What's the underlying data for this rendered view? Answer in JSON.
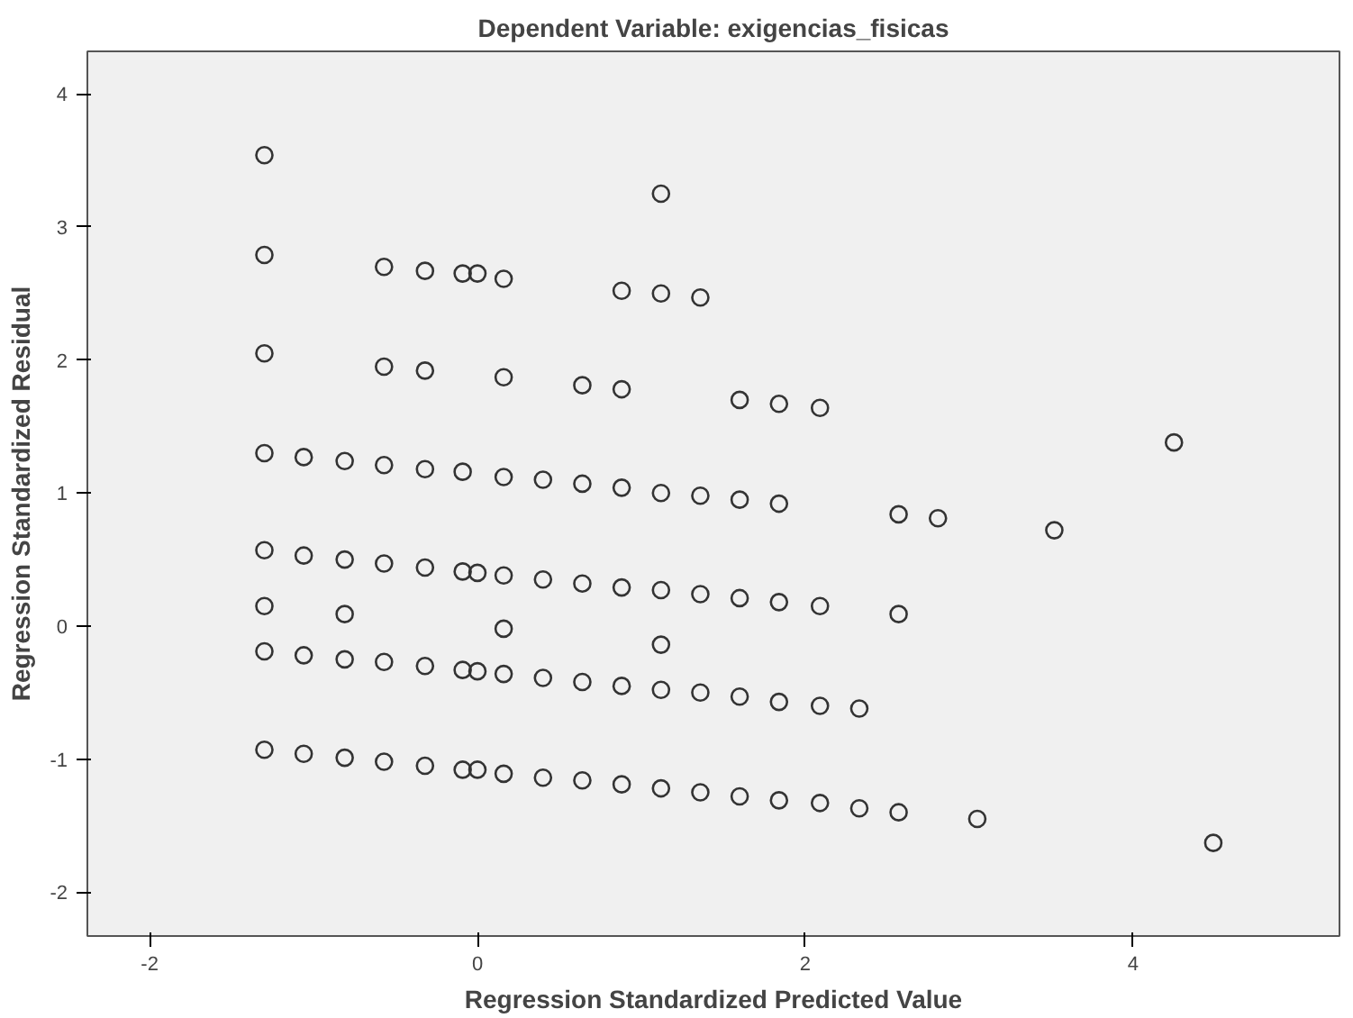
{
  "chart_data": {
    "type": "scatter",
    "title": "Dependent Variable: exigencias_fisicas",
    "xlabel": "Regression Standardized Predicted Value",
    "ylabel": "Regression Standardized Residual",
    "xlim": [
      -2.38,
      5.26
    ],
    "ylim": [
      -2.33,
      4.32
    ],
    "xticks": [
      -2,
      0,
      2,
      4
    ],
    "yticks": [
      -2,
      -1,
      0,
      1,
      2,
      3,
      4
    ],
    "grid": false,
    "marker": "circle",
    "series": [
      {
        "color": "#333333",
        "x": [
          -1.3,
          -1.06,
          -0.81,
          -0.57,
          -0.32,
          -0.09,
          0.16,
          0.4,
          0.64,
          0.88,
          1.12,
          1.36,
          1.6,
          1.84,
          2.57,
          2.81,
          3.52,
          4.25,
          -1.3,
          -1.06,
          -0.81,
          -0.57,
          -0.32,
          -0.09,
          0.0,
          0.16,
          0.4,
          0.64,
          0.88,
          1.12,
          1.36,
          1.6,
          1.84,
          2.09,
          2.57,
          -1.3,
          -0.81,
          0.16,
          1.12,
          -1.3,
          -1.06,
          -0.81,
          -0.57,
          -0.32,
          -0.09,
          0.0,
          0.16,
          0.4,
          0.64,
          0.88,
          1.12,
          1.36,
          1.6,
          1.84,
          2.09,
          2.33,
          -1.3,
          -1.06,
          -0.81,
          -0.57,
          -0.32,
          -0.09,
          0.0,
          0.16,
          0.4,
          0.64,
          0.88,
          1.12,
          1.36,
          1.6,
          1.84,
          2.09,
          2.33,
          2.57,
          3.05,
          4.49,
          -1.3,
          -1.3,
          -1.3,
          -0.57,
          -0.57,
          -0.32,
          -0.32,
          -0.09,
          0.0,
          0.16,
          0.16,
          0.64,
          0.88,
          0.88,
          1.12,
          1.12,
          1.36,
          1.6,
          1.84,
          2.09
        ],
        "values": [
          1.3,
          1.27,
          1.24,
          1.21,
          1.18,
          1.16,
          1.12,
          1.1,
          1.07,
          1.04,
          1.0,
          0.98,
          0.95,
          0.92,
          0.84,
          0.81,
          0.72,
          1.38,
          0.57,
          0.53,
          0.5,
          0.47,
          0.44,
          0.41,
          0.4,
          0.38,
          0.35,
          0.32,
          0.29,
          0.27,
          0.24,
          0.21,
          0.18,
          0.15,
          0.09,
          0.15,
          0.09,
          -0.02,
          -0.14,
          -0.19,
          -0.22,
          -0.25,
          -0.27,
          -0.3,
          -0.33,
          -0.34,
          -0.36,
          -0.39,
          -0.42,
          -0.45,
          -0.48,
          -0.5,
          -0.53,
          -0.57,
          -0.6,
          -0.62,
          -0.93,
          -0.96,
          -0.99,
          -1.02,
          -1.05,
          -1.08,
          -1.08,
          -1.11,
          -1.14,
          -1.16,
          -1.19,
          -1.22,
          -1.25,
          -1.28,
          -1.31,
          -1.33,
          -1.37,
          -1.4,
          -1.45,
          -1.63,
          3.54,
          2.79,
          2.05,
          2.7,
          1.95,
          2.67,
          1.92,
          2.65,
          2.65,
          2.61,
          1.87,
          1.81,
          2.52,
          1.78,
          3.25,
          2.5,
          2.47,
          1.7,
          1.67,
          1.64
        ]
      }
    ]
  }
}
